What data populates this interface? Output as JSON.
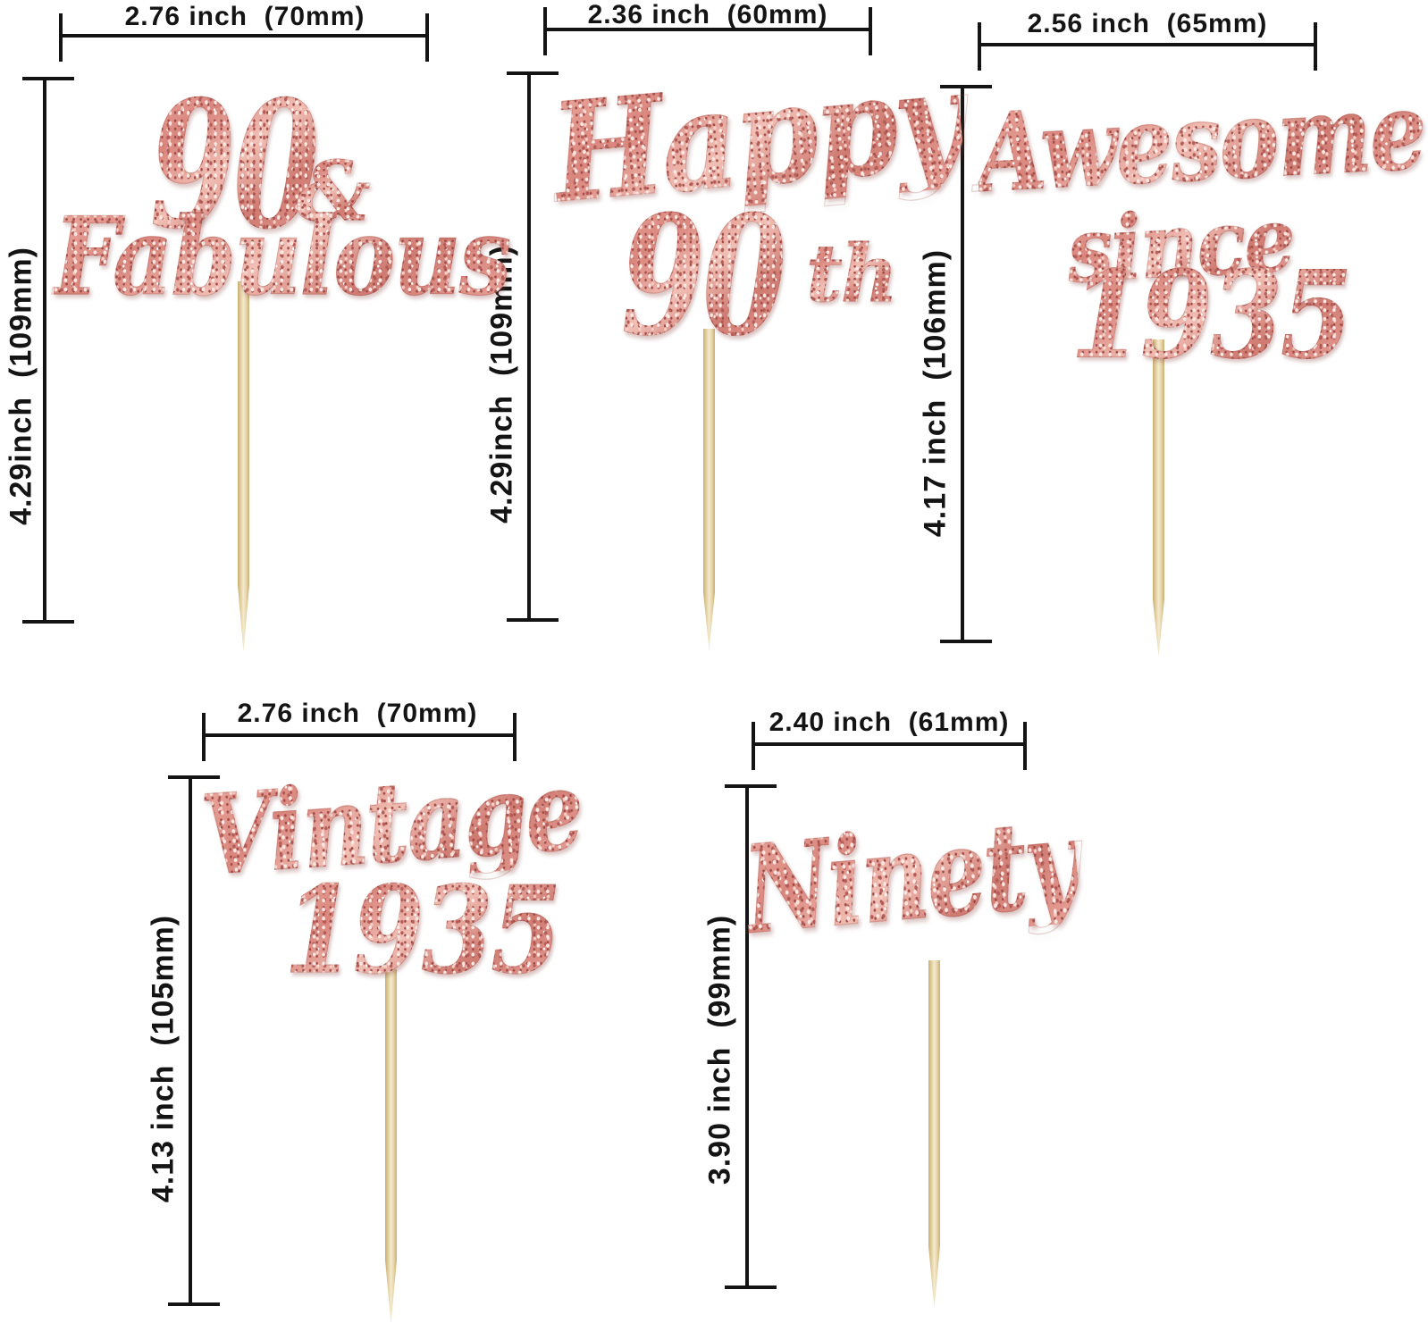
{
  "colors": {
    "background": "#ffffff",
    "dimension_ink": "#141414",
    "rose_base": "#df958d",
    "rose_dark": "#b35c57",
    "rose_light": "#f6cfc7",
    "rose_pale": "#fbe9e4",
    "stick_light": "#f3ead0",
    "stick_mid": "#e6d4a6",
    "stick_dark": "#c9ad72"
  },
  "toppers": [
    {
      "id": "90-and-fabulous",
      "width_label": "2.76 inch  (70mm)",
      "height_label": "4.29inch  (109mm)",
      "lines": [
        "90",
        "&",
        "Fabulous"
      ]
    },
    {
      "id": "happy-90th",
      "width_label": "2.36 inch  (60mm)",
      "height_label": "4.29inch  (109mm)",
      "lines": [
        "Happy",
        "90",
        "th"
      ]
    },
    {
      "id": "awesome-since-1935",
      "width_label": "2.56 inch  (65mm)",
      "height_label": "4.17 inch  (106mm)",
      "lines": [
        "Awesome",
        "since",
        "1935"
      ]
    },
    {
      "id": "vintage-1935",
      "width_label": "2.76 inch  (70mm)",
      "height_label": "4.13 inch  (105mm)",
      "lines": [
        "Vintage",
        "1935"
      ]
    },
    {
      "id": "ninety",
      "width_label": "2.40 inch  (61mm)",
      "height_label": "3.90 inch  (99mm)",
      "lines": [
        "Ninety"
      ]
    }
  ]
}
